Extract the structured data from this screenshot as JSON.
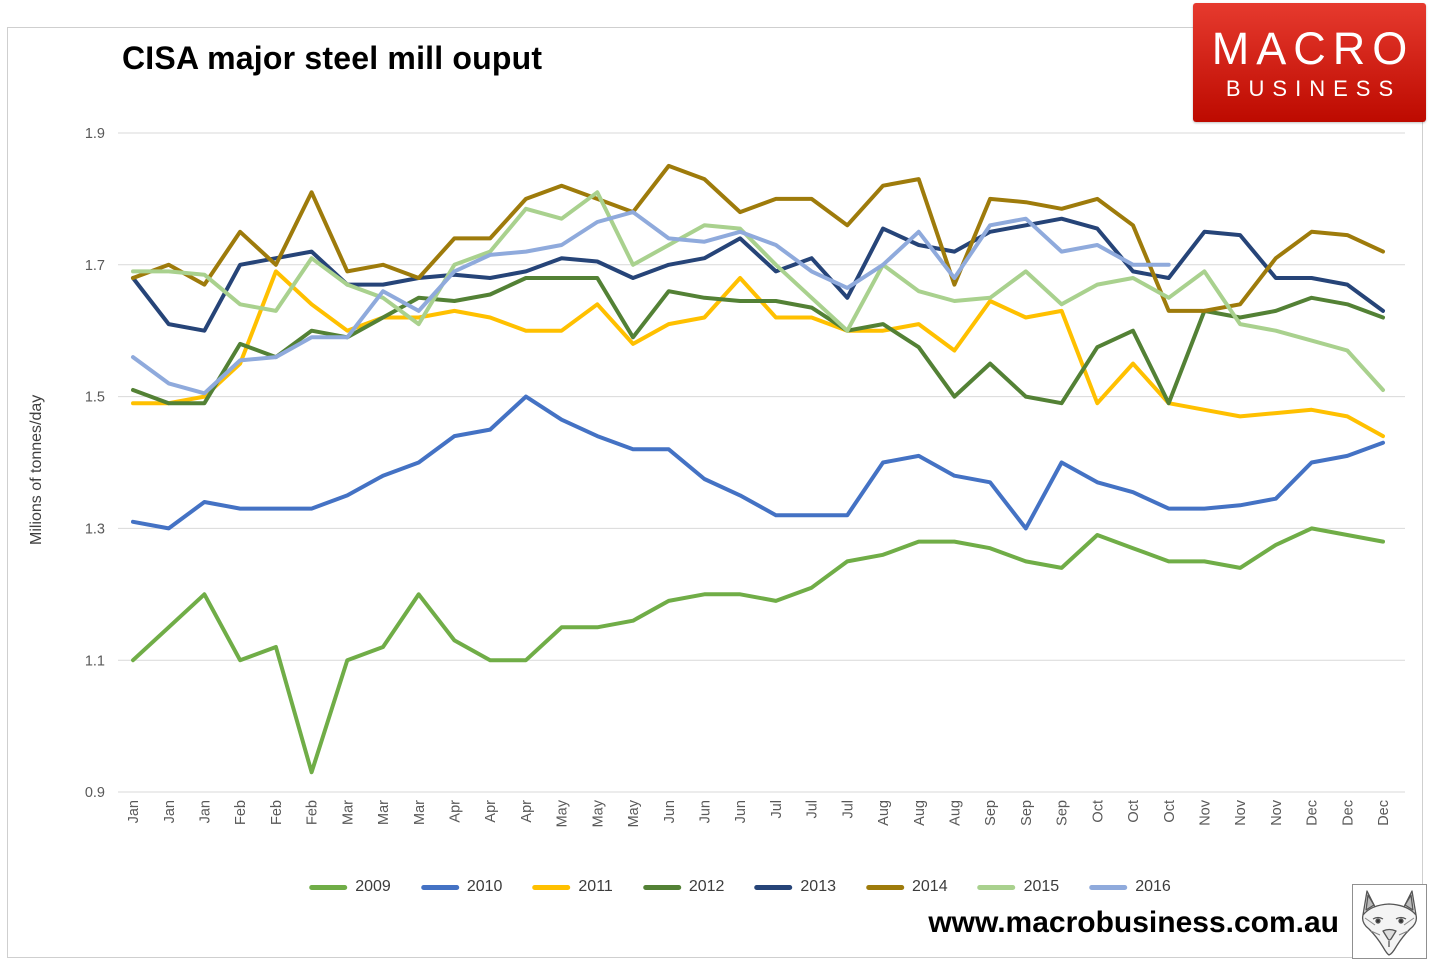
{
  "page": {
    "title": "CISA major steel mill ouput",
    "footer_url": "www.macrobusiness.com.au",
    "logo": {
      "line1": "MACRO",
      "line2": "BUSINESS",
      "bg_top": "#e63a2e",
      "bg_bottom": "#bd0a00",
      "text_color": "#ffffff"
    }
  },
  "chart_data": {
    "type": "line",
    "title": "CISA major steel mill ouput",
    "xlabel": "",
    "ylabel": "Milions of tonnes/day",
    "ylim": [
      0.9,
      1.9
    ],
    "y_ticks": [
      "1.9",
      "1.7",
      "1.5",
      "1.3",
      "1.1",
      "0.9"
    ],
    "grid": true,
    "gridline_color": "#d9d9d9",
    "tick_label_color": "#595959",
    "legend_position": "bottom",
    "categories": [
      "Jan",
      "Jan",
      "Jan",
      "Feb",
      "Feb",
      "Feb",
      "Mar",
      "Mar",
      "Mar",
      "Apr",
      "Apr",
      "Apr",
      "May",
      "May",
      "May",
      "Jun",
      "Jun",
      "Jun",
      "Jul",
      "Jul",
      "Jul",
      "Aug",
      "Aug",
      "Aug",
      "Sep",
      "Sep",
      "Sep",
      "Oct",
      "Oct",
      "Oct",
      "Nov",
      "Nov",
      "Nov",
      "Dec",
      "Dec",
      "Dec"
    ],
    "series": [
      {
        "name": "2009",
        "color": "#70AD47",
        "values": [
          1.1,
          1.15,
          1.2,
          1.1,
          1.12,
          0.93,
          1.1,
          1.12,
          1.2,
          1.13,
          1.1,
          1.1,
          1.15,
          1.15,
          1.16,
          1.19,
          1.2,
          1.2,
          1.19,
          1.21,
          1.25,
          1.26,
          1.28,
          1.28,
          1.27,
          1.25,
          1.24,
          1.29,
          1.27,
          1.25,
          1.25,
          1.24,
          1.275,
          1.3,
          1.29,
          1.28
        ]
      },
      {
        "name": "2010",
        "color": "#4472C4",
        "values": [
          1.31,
          1.3,
          1.34,
          1.33,
          1.33,
          1.33,
          1.35,
          1.38,
          1.4,
          1.44,
          1.45,
          1.5,
          1.465,
          1.44,
          1.42,
          1.42,
          1.375,
          1.35,
          1.32,
          1.32,
          1.32,
          1.4,
          1.41,
          1.38,
          1.37,
          1.3,
          1.4,
          1.37,
          1.355,
          1.33,
          1.33,
          1.335,
          1.345,
          1.4,
          1.41,
          1.43
        ]
      },
      {
        "name": "2011",
        "color": "#FFC000",
        "values": [
          1.49,
          1.49,
          1.5,
          1.55,
          1.69,
          1.64,
          1.6,
          1.62,
          1.62,
          1.63,
          1.62,
          1.6,
          1.6,
          1.64,
          1.58,
          1.61,
          1.62,
          1.68,
          1.62,
          1.62,
          1.6,
          1.6,
          1.61,
          1.57,
          1.645,
          1.62,
          1.63,
          1.49,
          1.55,
          1.49,
          1.48,
          1.47,
          1.475,
          1.48,
          1.47,
          1.44
        ]
      },
      {
        "name": "2012",
        "color": "#538135",
        "values": [
          1.51,
          1.49,
          1.49,
          1.58,
          1.56,
          1.6,
          1.59,
          1.62,
          1.65,
          1.645,
          1.655,
          1.68,
          1.68,
          1.68,
          1.59,
          1.66,
          1.65,
          1.645,
          1.645,
          1.635,
          1.6,
          1.61,
          1.575,
          1.5,
          1.55,
          1.5,
          1.49,
          1.575,
          1.6,
          1.49,
          1.63,
          1.62,
          1.63,
          1.65,
          1.64,
          1.62
        ]
      },
      {
        "name": "2013",
        "color": "#264478",
        "values": [
          1.68,
          1.61,
          1.6,
          1.7,
          1.71,
          1.72,
          1.67,
          1.67,
          1.68,
          1.685,
          1.68,
          1.69,
          1.71,
          1.705,
          1.68,
          1.7,
          1.71,
          1.74,
          1.69,
          1.71,
          1.65,
          1.755,
          1.73,
          1.72,
          1.75,
          1.76,
          1.77,
          1.755,
          1.69,
          1.68,
          1.75,
          1.745,
          1.68,
          1.68,
          1.67,
          1.63
        ]
      },
      {
        "name": "2014",
        "color": "#9E7B0B",
        "values": [
          1.68,
          1.7,
          1.67,
          1.75,
          1.7,
          1.81,
          1.69,
          1.7,
          1.68,
          1.74,
          1.74,
          1.8,
          1.82,
          1.8,
          1.78,
          1.85,
          1.83,
          1.78,
          1.8,
          1.8,
          1.76,
          1.82,
          1.83,
          1.67,
          1.8,
          1.795,
          1.785,
          1.8,
          1.76,
          1.63,
          1.63,
          1.64,
          1.71,
          1.75,
          1.745,
          1.72
        ]
      },
      {
        "name": "2015",
        "color": "#A9D18E",
        "values": [
          1.69,
          1.69,
          1.685,
          1.64,
          1.63,
          1.71,
          1.67,
          1.65,
          1.61,
          1.7,
          1.72,
          1.785,
          1.77,
          1.81,
          1.7,
          1.73,
          1.76,
          1.755,
          1.7,
          1.65,
          1.6,
          1.7,
          1.66,
          1.645,
          1.65,
          1.69,
          1.64,
          1.67,
          1.68,
          1.65,
          1.69,
          1.61,
          1.6,
          1.585,
          1.57,
          1.51
        ]
      },
      {
        "name": "2016",
        "color": "#8FAADC",
        "values": [
          1.56,
          1.52,
          1.505,
          1.555,
          1.56,
          1.59,
          1.59,
          1.66,
          1.63,
          1.69,
          1.715,
          1.72,
          1.73,
          1.765,
          1.78,
          1.74,
          1.735,
          1.75,
          1.73,
          1.69,
          1.665,
          1.7,
          1.75,
          1.68,
          1.76,
          1.77,
          1.72,
          1.73,
          1.7,
          1.7,
          null,
          null,
          null,
          null,
          null,
          null
        ]
      }
    ]
  }
}
